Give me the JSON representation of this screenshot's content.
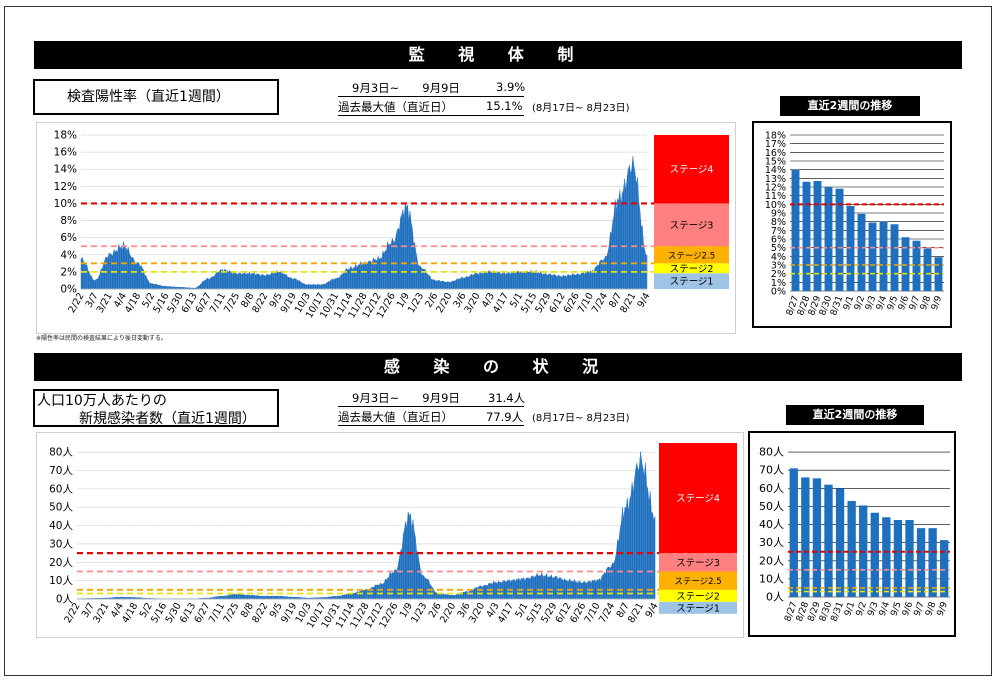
{
  "section1": {
    "banner": "監 視 体 制",
    "title": "検査陽性率（直近1週間）",
    "period": "9月3日~　　9月9日",
    "period_value": "3.9%",
    "max_label": "過去最大値（直近日）",
    "max_value": "15.1%",
    "max_period": "(8月17日~ 8月23日)",
    "footnote": "※陽性率は民間の検査結果により後日変動する。",
    "recent_title": "直近2週間の推移"
  },
  "section2": {
    "banner": "感 染 の 状 況",
    "title_line1": "人口10万人あたりの",
    "title_line2": "新規感染者数（直近1週間）",
    "period": "9月3日~　　9月9日",
    "period_value": "31.4人",
    "max_label": "過去最大値（直近日）",
    "max_value": "77.9人",
    "max_period": "(8月17日~ 8月23日)",
    "recent_title": "直近2週間の推移"
  },
  "colors": {
    "bar": "#1f6fbf",
    "stage4": "#ff0000",
    "stage3": "#ff8080",
    "stage25": "#ffb000",
    "stage2": "#ffff00",
    "stage1": "#9dc3e6",
    "line_stage4": "#e00000",
    "line_stage3": "#ff8c8c",
    "line_stage25": "#f0a800",
    "line_stage2": "#e6e600"
  },
  "chart_data": [
    {
      "type": "area",
      "x_tick_labels": [
        "2/22",
        "3/7",
        "3/21",
        "4/4",
        "4/18",
        "5/2",
        "5/16",
        "5/30",
        "6/13",
        "6/27",
        "7/11",
        "7/25",
        "8/8",
        "8/22",
        "9/5",
        "9/19",
        "10/3",
        "10/17",
        "10/31",
        "11/14",
        "11/28",
        "12/12",
        "12/26",
        "1/9",
        "1/23",
        "2/6",
        "2/20",
        "3/6",
        "3/20",
        "4/3",
        "4/17",
        "5/1",
        "5/15",
        "5/29",
        "6/12",
        "6/26",
        "7/10",
        "7/24",
        "8/7",
        "8/21",
        "9/4"
      ],
      "x_dates": [
        "2/22",
        "3/7",
        "3/21",
        "4/4",
        "4/18",
        "5/2",
        "5/16",
        "5/30",
        "6/13",
        "6/27",
        "7/11",
        "7/25",
        "8/8",
        "8/22",
        "9/5",
        "9/19",
        "10/3",
        "10/17",
        "10/31",
        "11/14",
        "11/28",
        "12/12",
        "12/26",
        "1/9",
        "1/23",
        "2/6",
        "2/20",
        "3/6",
        "3/20",
        "4/3",
        "4/17",
        "5/1",
        "5/15",
        "5/29",
        "6/12",
        "6/26",
        "7/10",
        "7/24",
        "8/7",
        "8/21",
        "9/4"
      ],
      "values": [
        3.5,
        1.0,
        4.0,
        5.0,
        3.0,
        0.6,
        0.3,
        0.2,
        0.1,
        1.2,
        2.2,
        1.8,
        1.8,
        1.6,
        2.0,
        1.2,
        0.5,
        0.5,
        1.2,
        2.4,
        3.0,
        3.5,
        5.5,
        9.5,
        2.5,
        1.0,
        0.8,
        1.3,
        1.8,
        2.0,
        1.8,
        2.0,
        2.0,
        1.7,
        1.5,
        1.7,
        2.0,
        3.5,
        10.5,
        14.5,
        4.0
      ],
      "y_ticks": [
        "0%",
        "2%",
        "4%",
        "6%",
        "8%",
        "10%",
        "12%",
        "14%",
        "16%",
        "18%"
      ],
      "ylim": [
        0,
        18
      ],
      "thresholds": [
        {
          "label": "ステージ4",
          "value": 10
        },
        {
          "label": "ステージ3",
          "value": 5
        },
        {
          "label": "ステージ2.5",
          "value": 3
        },
        {
          "label": "ステージ2",
          "value": 2
        }
      ],
      "stages": [
        "ステージ4",
        "ステージ3",
        "ステージ2.5",
        "ステージ2",
        "ステージ1"
      ]
    },
    {
      "type": "bar",
      "categories": [
        "8/27",
        "8/28",
        "8/29",
        "8/30",
        "8/31",
        "9/1",
        "9/2",
        "9/3",
        "9/4",
        "9/5",
        "9/6",
        "9/7",
        "9/8",
        "9/9"
      ],
      "values": [
        14.0,
        12.6,
        12.7,
        12.0,
        11.8,
        9.8,
        8.9,
        7.9,
        8.0,
        7.7,
        6.2,
        5.8,
        4.9,
        3.9
      ],
      "y_ticks": [
        "0%",
        "1%",
        "2%",
        "3%",
        "4%",
        "5%",
        "6%",
        "7%",
        "8%",
        "9%",
        "10%",
        "11%",
        "12%",
        "13%",
        "14%",
        "15%",
        "16%",
        "17%",
        "18%"
      ],
      "ylim": [
        0,
        18
      ],
      "thresholds": [
        10,
        5,
        3,
        2
      ]
    },
    {
      "type": "area",
      "x_tick_labels": [
        "2/22",
        "3/7",
        "3/21",
        "4/4",
        "4/18",
        "5/2",
        "5/16",
        "5/30",
        "6/13",
        "6/27",
        "7/11",
        "7/25",
        "8/8",
        "8/22",
        "9/5",
        "9/19",
        "10/3",
        "10/17",
        "10/31",
        "11/14",
        "11/28",
        "12/12",
        "12/26",
        "1/9",
        "1/23",
        "2/6",
        "2/20",
        "3/6",
        "3/20",
        "4/3",
        "4/17",
        "5/1",
        "5/15",
        "5/29",
        "6/12",
        "6/26",
        "7/10",
        "7/24",
        "8/7",
        "8/21",
        "9/4"
      ],
      "x_dates": [
        "2/22",
        "3/7",
        "3/21",
        "4/4",
        "4/18",
        "5/2",
        "5/16",
        "5/30",
        "6/13",
        "6/27",
        "7/11",
        "7/25",
        "8/8",
        "8/22",
        "9/5",
        "9/19",
        "10/3",
        "10/17",
        "10/31",
        "11/14",
        "11/28",
        "12/12",
        "12/26",
        "1/9",
        "1/23",
        "2/6",
        "2/20",
        "3/6",
        "3/20",
        "4/3",
        "4/17",
        "5/1",
        "5/15",
        "5/29",
        "6/12",
        "6/26",
        "7/10",
        "7/24",
        "8/7",
        "8/21",
        "9/4"
      ],
      "values": [
        0.1,
        0.3,
        0.5,
        1.0,
        0.8,
        0.3,
        0.1,
        0.1,
        0.1,
        0.5,
        1.5,
        2.5,
        2.0,
        1.5,
        1.5,
        1.0,
        0.5,
        0.8,
        1.5,
        3.0,
        5.0,
        8.0,
        15.0,
        45.0,
        12.0,
        3.0,
        2.0,
        4.0,
        7.0,
        9.0,
        10.0,
        11.0,
        13.0,
        12.0,
        10.0,
        9.0,
        10.0,
        18.0,
        50.0,
        75.0,
        45.0
      ],
      "y_ticks": [
        "0人",
        "10人",
        "20人",
        "30人",
        "40人",
        "50人",
        "60人",
        "70人",
        "80人"
      ],
      "ylim": [
        0,
        85
      ],
      "thresholds": [
        {
          "label": "ステージ4",
          "value": 25
        },
        {
          "label": "ステージ3",
          "value": 15
        },
        {
          "label": "ステージ2.5",
          "value": 5
        },
        {
          "label": "ステージ2",
          "value": 3
        }
      ],
      "stages": [
        "ステージ4",
        "ステージ3",
        "ステージ2.5",
        "ステージ2",
        "ステージ1"
      ]
    },
    {
      "type": "bar",
      "categories": [
        "8/27",
        "8/28",
        "8/29",
        "8/30",
        "8/31",
        "9/1",
        "9/2",
        "9/3",
        "9/4",
        "9/5",
        "9/6",
        "9/7",
        "9/8",
        "9/9"
      ],
      "values": [
        71,
        66,
        65.5,
        62,
        60,
        53,
        50.5,
        46.5,
        44,
        42.5,
        42.5,
        38,
        38,
        31.4
      ],
      "y_ticks": [
        "0人",
        "10人",
        "20人",
        "30人",
        "40人",
        "50人",
        "60人",
        "70人",
        "80人"
      ],
      "ylim": [
        0,
        85
      ],
      "thresholds": [
        25,
        15,
        5,
        3
      ]
    }
  ]
}
